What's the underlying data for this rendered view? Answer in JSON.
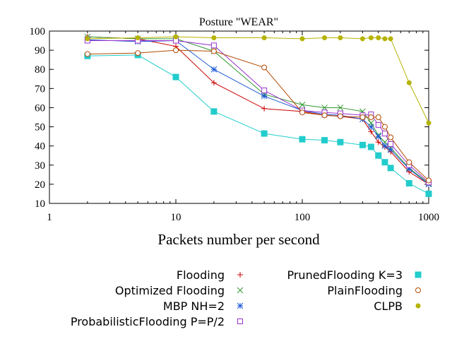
{
  "chart_data": {
    "type": "line",
    "title": "Posture \"WEAR\"",
    "xlabel": "Packets number per second",
    "ylabel": "",
    "xscale": "log",
    "xlim": [
      1,
      1000
    ],
    "ylim": [
      10,
      100
    ],
    "grid": false,
    "legend_position": "bottom",
    "x_ticks": [
      "1",
      "10",
      "100",
      "1000"
    ],
    "y_ticks": [
      "10",
      "20",
      "30",
      "40",
      "50",
      "60",
      "70",
      "80",
      "90",
      "100"
    ],
    "series": [
      {
        "name": "Flooding",
        "color": "#cc0000",
        "marker": "plus",
        "points": [
          [
            2,
            97
          ],
          [
            5,
            96
          ],
          [
            10,
            92
          ],
          [
            20,
            73
          ],
          [
            50,
            59.5
          ],
          [
            100,
            58
          ],
          [
            150,
            56
          ],
          [
            200,
            55.5
          ],
          [
            300,
            54
          ],
          [
            350,
            47.5
          ],
          [
            400,
            42
          ],
          [
            450,
            39.5
          ],
          [
            500,
            37
          ],
          [
            700,
            26.5
          ],
          [
            1000,
            20
          ]
        ]
      },
      {
        "name": "Optimized Flooding",
        "color": "#339933",
        "marker": "x",
        "points": [
          [
            2,
            97
          ],
          [
            5,
            96
          ],
          [
            10,
            96
          ],
          [
            20,
            89.5
          ],
          [
            50,
            67
          ],
          [
            100,
            61.5
          ],
          [
            150,
            60
          ],
          [
            200,
            60
          ],
          [
            300,
            58
          ],
          [
            350,
            52
          ],
          [
            400,
            45.5
          ],
          [
            450,
            42
          ],
          [
            500,
            39
          ],
          [
            700,
            28.5
          ],
          [
            1000,
            20.5
          ]
        ]
      },
      {
        "name": "MBP NH=2",
        "color": "#1f5bd6",
        "marker": "star",
        "points": [
          [
            2,
            95.5
          ],
          [
            5,
            94.5
          ],
          [
            10,
            95
          ],
          [
            20,
            80
          ],
          [
            50,
            66
          ],
          [
            100,
            58.5
          ],
          [
            150,
            56.5
          ],
          [
            200,
            56
          ],
          [
            300,
            54
          ],
          [
            350,
            50
          ],
          [
            400,
            45
          ],
          [
            450,
            40
          ],
          [
            500,
            38
          ],
          [
            700,
            28
          ],
          [
            1000,
            20
          ]
        ]
      },
      {
        "name": "ProbabilisticFlooding P=P/2",
        "color": "#9933cc",
        "marker": "square",
        "points": [
          [
            2,
            95
          ],
          [
            5,
            95
          ],
          [
            10,
            95
          ],
          [
            20,
            92.5
          ],
          [
            50,
            69
          ],
          [
            100,
            58.5
          ],
          [
            150,
            57.5
          ],
          [
            200,
            57
          ],
          [
            300,
            56
          ],
          [
            350,
            56.5
          ],
          [
            400,
            51
          ],
          [
            450,
            46.5
          ],
          [
            500,
            41
          ],
          [
            700,
            30
          ],
          [
            1000,
            21
          ]
        ]
      },
      {
        "name": "PrunedFlooding K=3",
        "color": "#22cccc",
        "marker": "filled-square",
        "points": [
          [
            2,
            87
          ],
          [
            5,
            87.5
          ],
          [
            10,
            76
          ],
          [
            20,
            58
          ],
          [
            50,
            46.5
          ],
          [
            100,
            43.5
          ],
          [
            150,
            43
          ],
          [
            200,
            42
          ],
          [
            300,
            40.5
          ],
          [
            350,
            39.5
          ],
          [
            400,
            35
          ],
          [
            450,
            31.5
          ],
          [
            500,
            28.5
          ],
          [
            700,
            20.5
          ],
          [
            1000,
            15
          ]
        ]
      },
      {
        "name": "PlainFlooding",
        "color": "#b34a00",
        "marker": "circle",
        "points": [
          [
            2,
            88
          ],
          [
            5,
            88.5
          ],
          [
            10,
            90
          ],
          [
            20,
            89.5
          ],
          [
            50,
            81
          ],
          [
            100,
            57.5
          ],
          [
            150,
            56
          ],
          [
            200,
            55.5
          ],
          [
            300,
            55
          ],
          [
            350,
            55
          ],
          [
            400,
            55
          ],
          [
            450,
            50
          ],
          [
            500,
            44.5
          ],
          [
            700,
            31.5
          ],
          [
            1000,
            22
          ]
        ]
      },
      {
        "name": "CLPB",
        "color": "#b5b300",
        "marker": "filled-circle",
        "points": [
          [
            2,
            96
          ],
          [
            5,
            96.5
          ],
          [
            10,
            97
          ],
          [
            20,
            96.5
          ],
          [
            50,
            96.5
          ],
          [
            100,
            96
          ],
          [
            150,
            96.5
          ],
          [
            200,
            96.5
          ],
          [
            300,
            96
          ],
          [
            350,
            96.5
          ],
          [
            400,
            96.5
          ],
          [
            450,
            96
          ],
          [
            500,
            96
          ],
          [
            700,
            73
          ],
          [
            1000,
            52
          ]
        ]
      }
    ]
  }
}
